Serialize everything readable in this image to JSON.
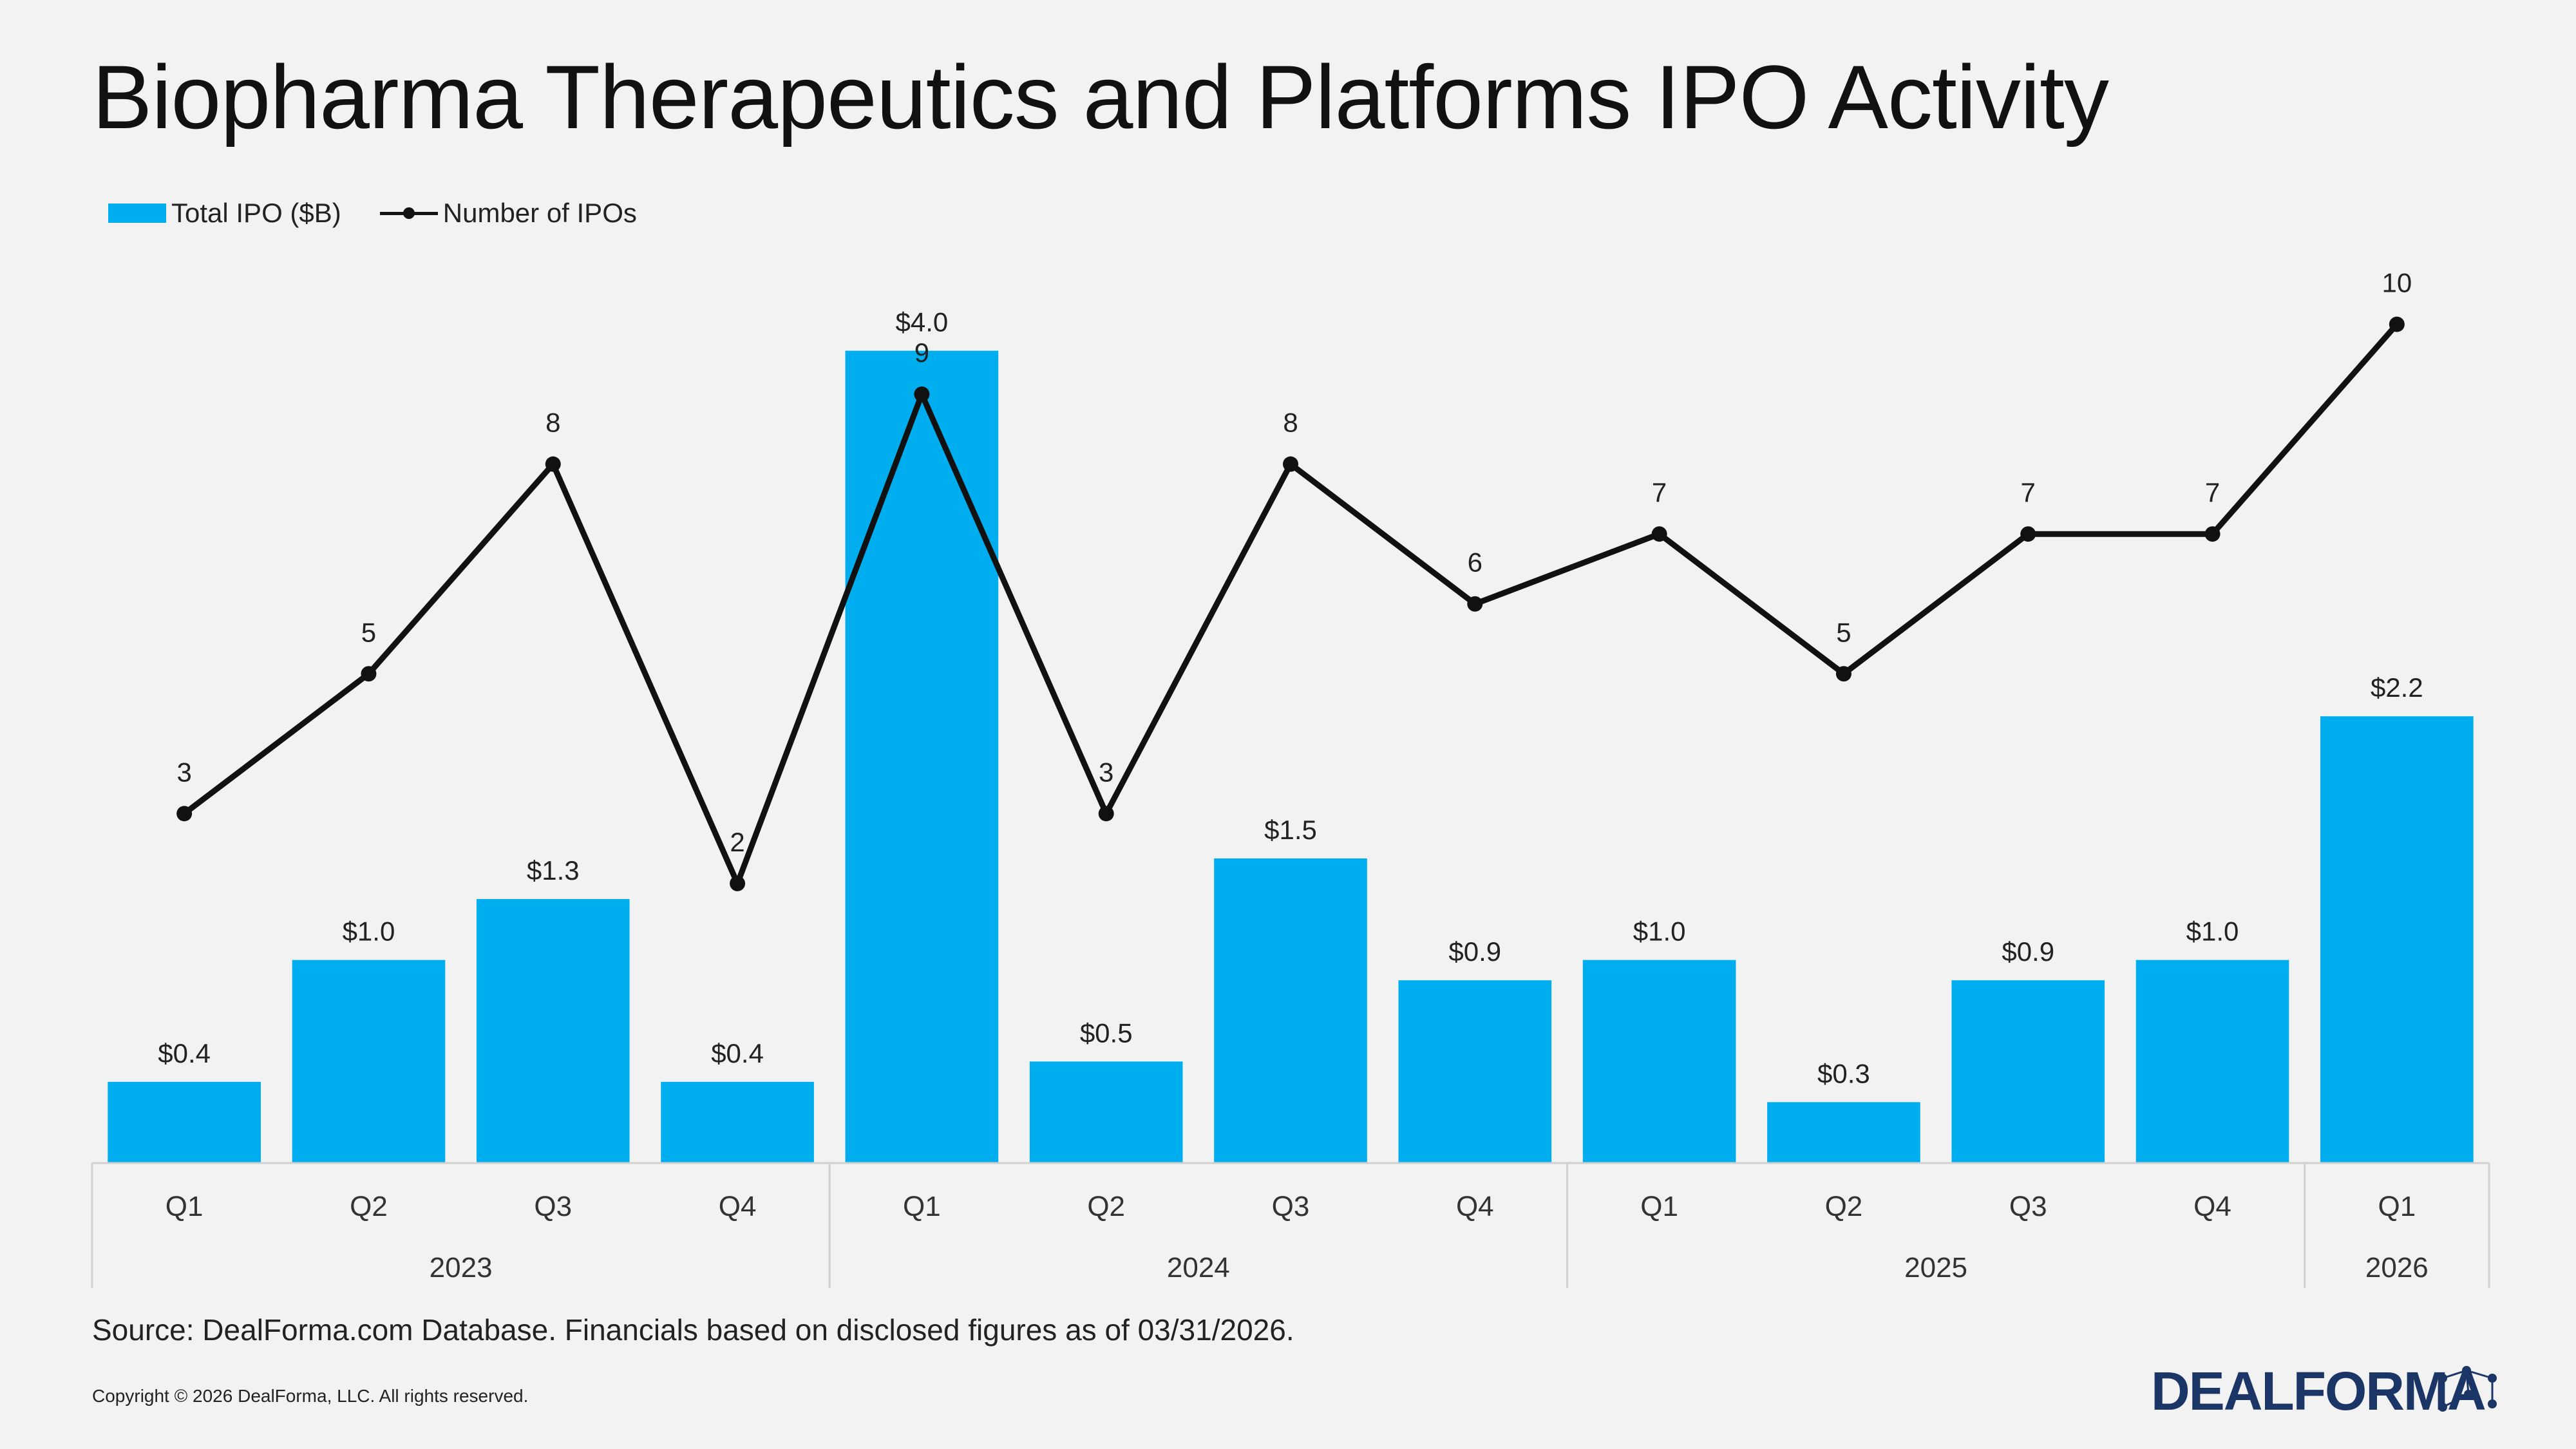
{
  "title": "Biopharma Therapeutics and Platforms IPO Activity",
  "legend": {
    "bar_label": "Total IPO ($B)",
    "line_label": "Number of IPOs"
  },
  "source": "Source: DealForma.com Database. Financials based on disclosed figures as of 03/31/2026.",
  "copyright": "Copyright © 2026 DealForma, LLC. All rights reserved.",
  "logo": {
    "text": "DEALFORMA"
  },
  "colors": {
    "bar": "#00aeef",
    "line": "#111111",
    "background": "#f2f2f2",
    "logo": "#1a3566"
  },
  "chart_data": {
    "type": "bar",
    "categories": [
      "Q1",
      "Q2",
      "Q3",
      "Q4",
      "Q1",
      "Q2",
      "Q3",
      "Q4",
      "Q1",
      "Q2",
      "Q3",
      "Q4",
      "Q1"
    ],
    "groups": [
      {
        "label": "2023",
        "count": 4
      },
      {
        "label": "2024",
        "count": 4
      },
      {
        "label": "2025",
        "count": 4
      },
      {
        "label": "2026",
        "count": 1
      }
    ],
    "series": [
      {
        "name": "Total IPO ($B)",
        "type": "bar",
        "values": [
          0.4,
          1.0,
          1.3,
          0.4,
          4.0,
          0.5,
          1.5,
          0.9,
          1.0,
          0.3,
          0.9,
          1.0,
          2.2
        ],
        "labels": [
          "$0.4",
          "$1.0",
          "$1.3",
          "$0.4",
          "$4.0",
          "$0.5",
          "$1.5",
          "$0.9",
          "$1.0",
          "$0.3",
          "$0.9",
          "$1.0",
          "$2.2"
        ]
      },
      {
        "name": "Number of IPOs",
        "type": "line",
        "values": [
          3,
          5,
          8,
          2,
          9,
          3,
          8,
          6,
          7,
          5,
          7,
          7,
          10
        ],
        "labels": [
          "3",
          "5",
          "8",
          "2",
          "9",
          "3",
          "8",
          "6",
          "7",
          "5",
          "7",
          "7",
          "10"
        ]
      }
    ],
    "y_bar_range": [
      0,
      4.3
    ],
    "y_line_range": [
      -2,
      13
    ],
    "grid": false,
    "legend_position": "top-left",
    "title": "Biopharma Therapeutics and Platforms IPO Activity"
  }
}
